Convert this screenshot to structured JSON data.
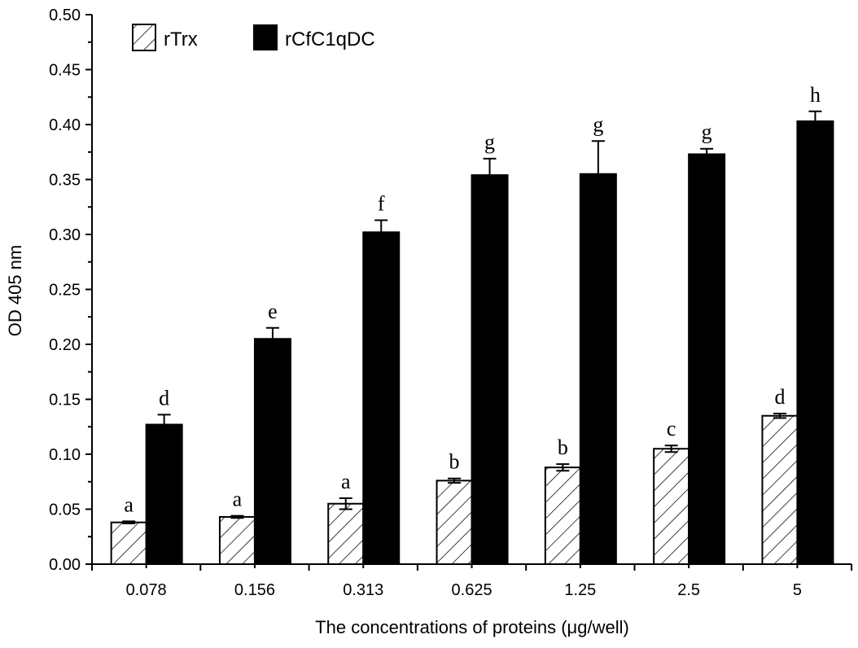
{
  "chart_data": {
    "type": "bar",
    "title": "",
    "xlabel": "The concentrations of proteins (μg/well)",
    "ylabel": "OD 405 nm",
    "ylim": [
      0,
      0.5
    ],
    "yticks": [
      "0.00",
      "0.05",
      "0.10",
      "0.15",
      "0.20",
      "0.25",
      "0.30",
      "0.35",
      "0.40",
      "0.45",
      "0.50"
    ],
    "categories": [
      "0.078",
      "0.156",
      "0.313",
      "0.625",
      "1.25",
      "2.5",
      "5"
    ],
    "legend_position": "top-left",
    "grid": false,
    "series": [
      {
        "name": "rTrx",
        "fill": "hatched",
        "values": [
          0.038,
          0.043,
          0.055,
          0.076,
          0.088,
          0.105,
          0.135
        ],
        "errors": [
          0.001,
          0.001,
          0.005,
          0.002,
          0.003,
          0.003,
          0.002
        ],
        "labels": [
          "a",
          "a",
          "a",
          "b",
          "b",
          "c",
          "d"
        ]
      },
      {
        "name": "rCfC1qDC",
        "fill": "#000000",
        "values": [
          0.127,
          0.205,
          0.302,
          0.354,
          0.355,
          0.373,
          0.403
        ],
        "errors": [
          0.009,
          0.01,
          0.011,
          0.015,
          0.03,
          0.005,
          0.009
        ],
        "labels": [
          "d",
          "e",
          "f",
          "g",
          "g",
          "g",
          "h"
        ]
      }
    ]
  }
}
